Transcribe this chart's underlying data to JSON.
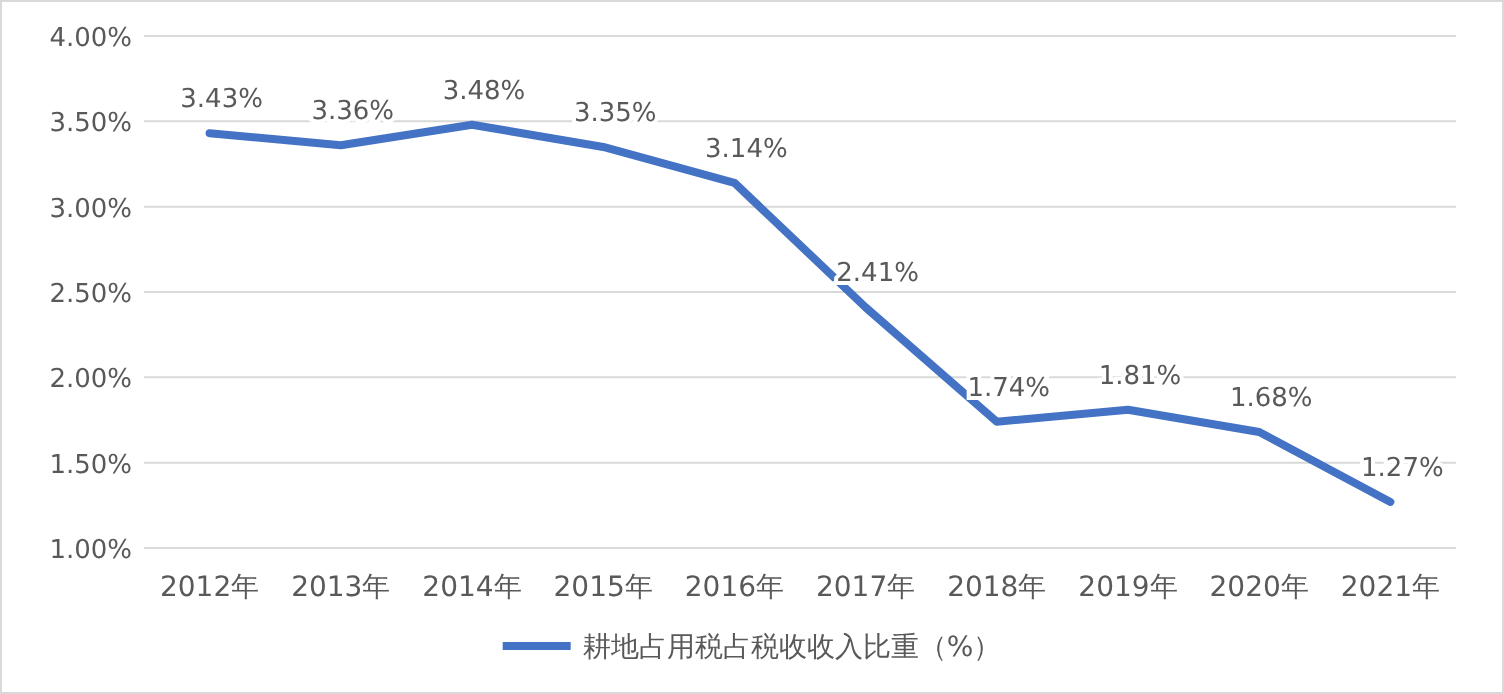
{
  "chart_data": {
    "type": "line",
    "categories": [
      "2012年",
      "2013年",
      "2014年",
      "2015年",
      "2016年",
      "2017年",
      "2018年",
      "2019年",
      "2020年",
      "2021年"
    ],
    "series": [
      {
        "name": "耕地占用税占税收收入比重（%）",
        "color": "#4472c4",
        "values": [
          3.43,
          3.36,
          3.48,
          3.35,
          3.14,
          2.41,
          1.74,
          1.81,
          1.68,
          1.27
        ],
        "value_labels": [
          "3.43%",
          "3.36%",
          "3.48%",
          "3.35%",
          "3.14%",
          "2.41%",
          "1.74%",
          "1.81%",
          "1.68%",
          "1.27%"
        ]
      }
    ],
    "ylim": [
      1,
      4
    ],
    "yticks": [
      {
        "value": 1,
        "label": "1.00%"
      },
      {
        "value": 1.5,
        "label": "1.50%"
      },
      {
        "value": 2,
        "label": "2.00%"
      },
      {
        "value": 2.5,
        "label": "2.50%"
      },
      {
        "value": 3,
        "label": "3.00%"
      },
      {
        "value": 3.5,
        "label": "3.50%"
      },
      {
        "value": 4,
        "label": "4.00%"
      }
    ],
    "grid": "y",
    "legend": "bottom",
    "marker": "none",
    "line_style": "solid"
  }
}
